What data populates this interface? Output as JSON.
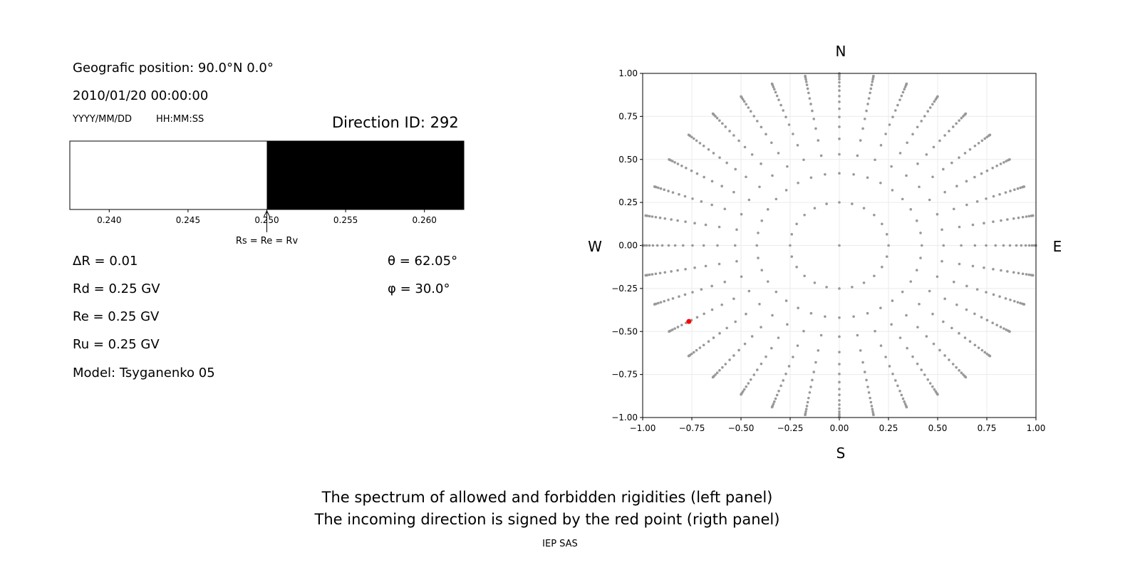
{
  "left_panel": {
    "geo_position": "Geografic position: 90.0°N 0.0°",
    "datetime": "2010/01/20 00:00:00",
    "date_format": "YYYY/MM/DD",
    "time_format": "HH:MM:SS",
    "direction_id": "Direction ID: 292",
    "delta_r": "ΔR = 0.01",
    "rd": "Rd = 0.25 GV",
    "re": "Re = 0.25 GV",
    "ru": "Ru = 0.25 GV",
    "model": "Model: Tsyganenko 05",
    "theta": "θ = 62.05°",
    "phi": "φ = 30.0°"
  },
  "footer": {
    "line1": "The spectrum of allowed and forbidden rigidities (left panel)",
    "line2": "The incoming direction is signed by the red point (rigth panel)",
    "credit": "IEP SAS"
  },
  "chart_data": [
    {
      "type": "bar",
      "title": "",
      "xlim": [
        0.2375,
        0.2625
      ],
      "xticks": [
        "0.240",
        "0.245",
        "0.250",
        "0.255",
        "0.260"
      ],
      "xtick_values": [
        0.24,
        0.245,
        0.25,
        0.255,
        0.26
      ],
      "segments": [
        {
          "from": 0.2375,
          "to": 0.25,
          "color": "#ffffff"
        },
        {
          "from": 0.25,
          "to": 0.2625,
          "color": "#000000"
        }
      ],
      "annotation": {
        "text": "Rs = Re = Rv",
        "x": 0.25
      }
    },
    {
      "type": "scatter",
      "xlim": [
        -1,
        1
      ],
      "ylim": [
        -1,
        1
      ],
      "grid": true,
      "xticks": [
        "−1.00",
        "−0.75",
        "−0.50",
        "−0.25",
        "0.00",
        "0.25",
        "0.50",
        "0.75",
        "1.00"
      ],
      "yticks": [
        "−1.00",
        "−0.75",
        "−0.50",
        "−0.25",
        "0.00",
        "0.25",
        "0.50",
        "0.75",
        "1.00"
      ],
      "tick_values": [
        -1,
        -0.75,
        -0.5,
        -0.25,
        0,
        0.25,
        0.5,
        0.75,
        1
      ],
      "compass": {
        "north": "N",
        "south": "S",
        "west": "W",
        "east": "E"
      },
      "point_color": "#999999",
      "highlight_color": "#ff0000",
      "direction_grid": {
        "center_point": true,
        "ring": {
          "zenith_deg": 14.5,
          "azimuth_step_deg": 15
        },
        "spokes": {
          "azimuth_step_deg": 10,
          "zenith_deg": [
            24.8,
            32.0,
            38.3,
            43.6,
            48.3,
            52.6,
            56.6,
            60.2,
            64.2,
            67.7,
            71.4,
            75.0,
            78.5,
            82.5,
            86.0,
            89.5
          ]
        }
      },
      "highlight": {
        "theta_deg": 62.05,
        "phi_deg": 30.0
      }
    }
  ]
}
